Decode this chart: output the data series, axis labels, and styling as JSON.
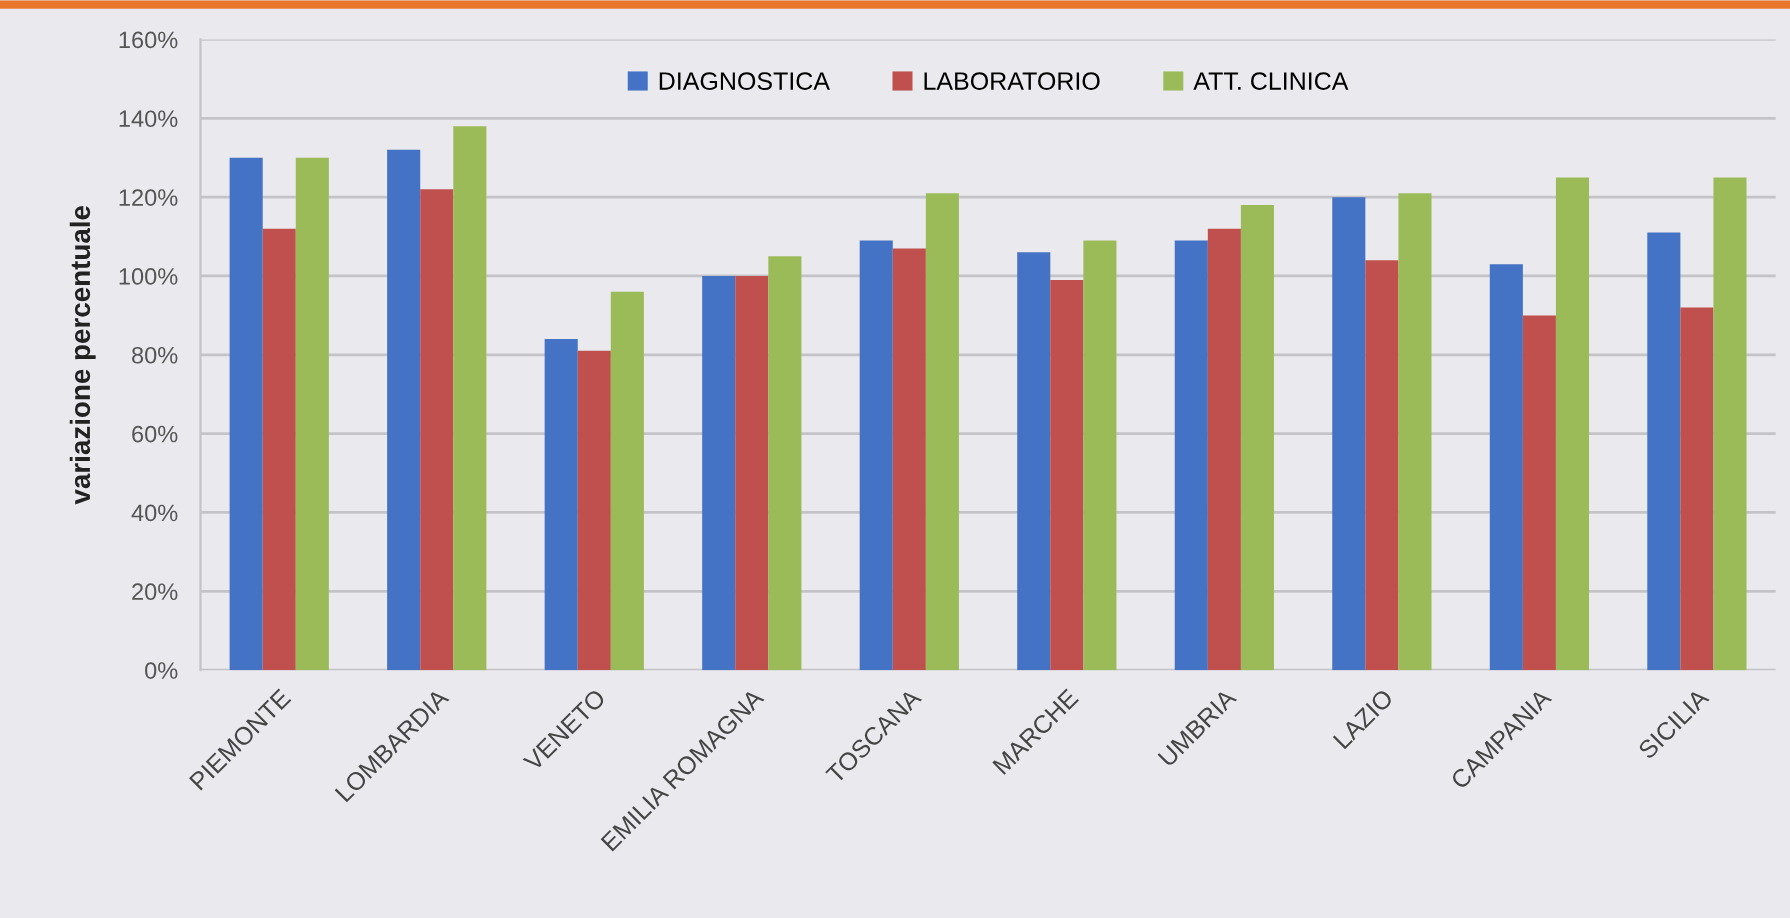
{
  "chart_data": {
    "type": "bar",
    "ylabel": "variazione percentuale",
    "categories": [
      "PIEMONTE",
      "LOMBARDIA",
      "VENETO",
      "EMILIA ROMAGNA",
      "TOSCANA",
      "MARCHE",
      "UMBRIA",
      "LAZIO",
      "CAMPANIA",
      "SICILIA"
    ],
    "series": [
      {
        "name": "DIAGNOSTICA",
        "color": "#4472c4",
        "values": [
          130,
          132,
          84,
          100,
          109,
          106,
          109,
          120,
          103,
          111
        ]
      },
      {
        "name": "LABORATORIO",
        "color": "#c0504d",
        "values": [
          112,
          122,
          81,
          100,
          107,
          99,
          112,
          104,
          90,
          92
        ]
      },
      {
        "name": "ATT. CLINICA",
        "color": "#9bbb59",
        "values": [
          130,
          138,
          96,
          105,
          121,
          109,
          118,
          121,
          125,
          125
        ]
      }
    ],
    "ylim": [
      0,
      160
    ],
    "yticks": [
      {
        "value": 0,
        "label": "0%"
      },
      {
        "value": 20,
        "label": "20%"
      },
      {
        "value": 40,
        "label": "40%"
      },
      {
        "value": 60,
        "label": "60%"
      },
      {
        "value": 80,
        "label": "80%"
      },
      {
        "value": 100,
        "label": "100%"
      },
      {
        "value": 120,
        "label": "120%"
      },
      {
        "value": 140,
        "label": "140%"
      },
      {
        "value": 160,
        "label": "160%"
      }
    ],
    "grid": "y",
    "legend": "top"
  }
}
